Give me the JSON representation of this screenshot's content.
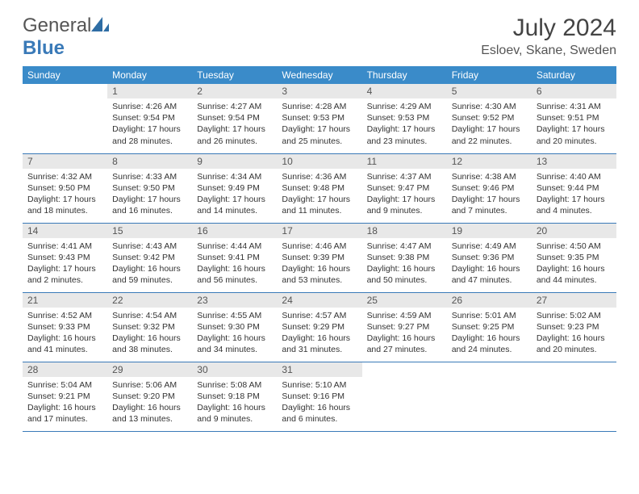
{
  "logo": {
    "text_general": "General",
    "text_blue": "Blue"
  },
  "title": "July 2024",
  "location": "Esloev, Skane, Sweden",
  "colors": {
    "header_bg": "#3a8bc9",
    "header_fg": "#ffffff",
    "daynum_bg": "#e8e8e8",
    "border": "#3a7ab8",
    "logo_gray": "#555555",
    "logo_blue": "#3a7ab8"
  },
  "weekdays": [
    "Sunday",
    "Monday",
    "Tuesday",
    "Wednesday",
    "Thursday",
    "Friday",
    "Saturday"
  ],
  "layout": {
    "first_weekday_index": 1,
    "days_in_month": 31
  },
  "days": {
    "1": {
      "sunrise": "Sunrise: 4:26 AM",
      "sunset": "Sunset: 9:54 PM",
      "daylight1": "Daylight: 17 hours",
      "daylight2": "and 28 minutes."
    },
    "2": {
      "sunrise": "Sunrise: 4:27 AM",
      "sunset": "Sunset: 9:54 PM",
      "daylight1": "Daylight: 17 hours",
      "daylight2": "and 26 minutes."
    },
    "3": {
      "sunrise": "Sunrise: 4:28 AM",
      "sunset": "Sunset: 9:53 PM",
      "daylight1": "Daylight: 17 hours",
      "daylight2": "and 25 minutes."
    },
    "4": {
      "sunrise": "Sunrise: 4:29 AM",
      "sunset": "Sunset: 9:53 PM",
      "daylight1": "Daylight: 17 hours",
      "daylight2": "and 23 minutes."
    },
    "5": {
      "sunrise": "Sunrise: 4:30 AM",
      "sunset": "Sunset: 9:52 PM",
      "daylight1": "Daylight: 17 hours",
      "daylight2": "and 22 minutes."
    },
    "6": {
      "sunrise": "Sunrise: 4:31 AM",
      "sunset": "Sunset: 9:51 PM",
      "daylight1": "Daylight: 17 hours",
      "daylight2": "and 20 minutes."
    },
    "7": {
      "sunrise": "Sunrise: 4:32 AM",
      "sunset": "Sunset: 9:50 PM",
      "daylight1": "Daylight: 17 hours",
      "daylight2": "and 18 minutes."
    },
    "8": {
      "sunrise": "Sunrise: 4:33 AM",
      "sunset": "Sunset: 9:50 PM",
      "daylight1": "Daylight: 17 hours",
      "daylight2": "and 16 minutes."
    },
    "9": {
      "sunrise": "Sunrise: 4:34 AM",
      "sunset": "Sunset: 9:49 PM",
      "daylight1": "Daylight: 17 hours",
      "daylight2": "and 14 minutes."
    },
    "10": {
      "sunrise": "Sunrise: 4:36 AM",
      "sunset": "Sunset: 9:48 PM",
      "daylight1": "Daylight: 17 hours",
      "daylight2": "and 11 minutes."
    },
    "11": {
      "sunrise": "Sunrise: 4:37 AM",
      "sunset": "Sunset: 9:47 PM",
      "daylight1": "Daylight: 17 hours",
      "daylight2": "and 9 minutes."
    },
    "12": {
      "sunrise": "Sunrise: 4:38 AM",
      "sunset": "Sunset: 9:46 PM",
      "daylight1": "Daylight: 17 hours",
      "daylight2": "and 7 minutes."
    },
    "13": {
      "sunrise": "Sunrise: 4:40 AM",
      "sunset": "Sunset: 9:44 PM",
      "daylight1": "Daylight: 17 hours",
      "daylight2": "and 4 minutes."
    },
    "14": {
      "sunrise": "Sunrise: 4:41 AM",
      "sunset": "Sunset: 9:43 PM",
      "daylight1": "Daylight: 17 hours",
      "daylight2": "and 2 minutes."
    },
    "15": {
      "sunrise": "Sunrise: 4:43 AM",
      "sunset": "Sunset: 9:42 PM",
      "daylight1": "Daylight: 16 hours",
      "daylight2": "and 59 minutes."
    },
    "16": {
      "sunrise": "Sunrise: 4:44 AM",
      "sunset": "Sunset: 9:41 PM",
      "daylight1": "Daylight: 16 hours",
      "daylight2": "and 56 minutes."
    },
    "17": {
      "sunrise": "Sunrise: 4:46 AM",
      "sunset": "Sunset: 9:39 PM",
      "daylight1": "Daylight: 16 hours",
      "daylight2": "and 53 minutes."
    },
    "18": {
      "sunrise": "Sunrise: 4:47 AM",
      "sunset": "Sunset: 9:38 PM",
      "daylight1": "Daylight: 16 hours",
      "daylight2": "and 50 minutes."
    },
    "19": {
      "sunrise": "Sunrise: 4:49 AM",
      "sunset": "Sunset: 9:36 PM",
      "daylight1": "Daylight: 16 hours",
      "daylight2": "and 47 minutes."
    },
    "20": {
      "sunrise": "Sunrise: 4:50 AM",
      "sunset": "Sunset: 9:35 PM",
      "daylight1": "Daylight: 16 hours",
      "daylight2": "and 44 minutes."
    },
    "21": {
      "sunrise": "Sunrise: 4:52 AM",
      "sunset": "Sunset: 9:33 PM",
      "daylight1": "Daylight: 16 hours",
      "daylight2": "and 41 minutes."
    },
    "22": {
      "sunrise": "Sunrise: 4:54 AM",
      "sunset": "Sunset: 9:32 PM",
      "daylight1": "Daylight: 16 hours",
      "daylight2": "and 38 minutes."
    },
    "23": {
      "sunrise": "Sunrise: 4:55 AM",
      "sunset": "Sunset: 9:30 PM",
      "daylight1": "Daylight: 16 hours",
      "daylight2": "and 34 minutes."
    },
    "24": {
      "sunrise": "Sunrise: 4:57 AM",
      "sunset": "Sunset: 9:29 PM",
      "daylight1": "Daylight: 16 hours",
      "daylight2": "and 31 minutes."
    },
    "25": {
      "sunrise": "Sunrise: 4:59 AM",
      "sunset": "Sunset: 9:27 PM",
      "daylight1": "Daylight: 16 hours",
      "daylight2": "and 27 minutes."
    },
    "26": {
      "sunrise": "Sunrise: 5:01 AM",
      "sunset": "Sunset: 9:25 PM",
      "daylight1": "Daylight: 16 hours",
      "daylight2": "and 24 minutes."
    },
    "27": {
      "sunrise": "Sunrise: 5:02 AM",
      "sunset": "Sunset: 9:23 PM",
      "daylight1": "Daylight: 16 hours",
      "daylight2": "and 20 minutes."
    },
    "28": {
      "sunrise": "Sunrise: 5:04 AM",
      "sunset": "Sunset: 9:21 PM",
      "daylight1": "Daylight: 16 hours",
      "daylight2": "and 17 minutes."
    },
    "29": {
      "sunrise": "Sunrise: 5:06 AM",
      "sunset": "Sunset: 9:20 PM",
      "daylight1": "Daylight: 16 hours",
      "daylight2": "and 13 minutes."
    },
    "30": {
      "sunrise": "Sunrise: 5:08 AM",
      "sunset": "Sunset: 9:18 PM",
      "daylight1": "Daylight: 16 hours",
      "daylight2": "and 9 minutes."
    },
    "31": {
      "sunrise": "Sunrise: 5:10 AM",
      "sunset": "Sunset: 9:16 PM",
      "daylight1": "Daylight: 16 hours",
      "daylight2": "and 6 minutes."
    }
  }
}
